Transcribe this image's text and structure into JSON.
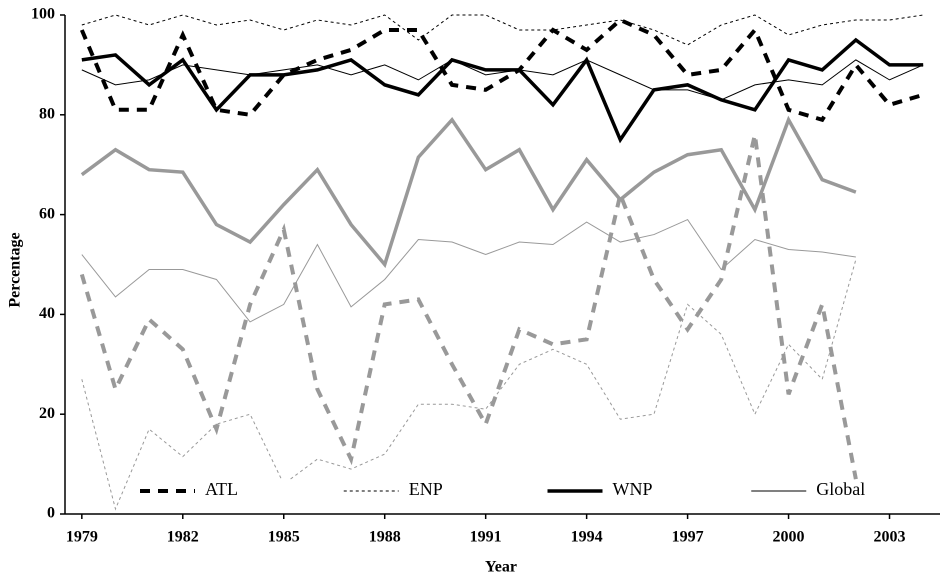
{
  "chart_data": {
    "type": "line",
    "x_label": "Year",
    "y_label": "Percentage",
    "x": [
      1979,
      1980,
      1981,
      1982,
      1983,
      1984,
      1985,
      1986,
      1987,
      1988,
      1989,
      1990,
      1991,
      1992,
      1993,
      1994,
      1995,
      1996,
      1997,
      1998,
      1999,
      2000,
      2001,
      2002,
      2003,
      2004
    ],
    "xlim": [
      1978.5,
      2004.5
    ],
    "xticks": [
      1979,
      1982,
      1985,
      1988,
      1991,
      1994,
      1997,
      2000,
      2003
    ],
    "ylim": [
      0,
      100
    ],
    "yticks": [
      0,
      20,
      40,
      60,
      80,
      100
    ],
    "legend": "bottom",
    "series": [
      {
        "name": "ATL",
        "color": "#000000",
        "line_style": "dashed",
        "line_width": 4,
        "values": [
          97,
          81,
          81,
          96,
          81,
          80,
          88,
          91,
          93,
          97,
          97,
          86,
          85,
          89,
          97,
          93,
          99,
          96,
          88,
          89,
          97,
          81,
          79,
          90,
          82,
          84
        ]
      },
      {
        "name": "ENP",
        "color": "#000000",
        "line_style": "dotted",
        "line_width": 1,
        "values": [
          98,
          100,
          98,
          100,
          98,
          99,
          97,
          99,
          98,
          100,
          95,
          100,
          100,
          97,
          97,
          98,
          99,
          97,
          94,
          98,
          100,
          96,
          98,
          99,
          99,
          100
        ]
      },
      {
        "name": "WNP",
        "color": "#000000",
        "line_style": "solid",
        "line_width": 3.5,
        "values": [
          91,
          92,
          86,
          91,
          81,
          88,
          88,
          89,
          91,
          86,
          84,
          91,
          89,
          89,
          82,
          91,
          75,
          85,
          86,
          83,
          81,
          91,
          89,
          95,
          90,
          90
        ]
      },
      {
        "name": "Global",
        "color": "#000000",
        "line_style": "solid",
        "line_width": 1,
        "values": [
          89,
          86,
          87,
          90,
          89,
          88,
          89,
          90,
          88,
          90,
          87,
          91,
          88,
          89,
          88,
          91,
          88,
          85,
          85,
          83,
          86,
          87,
          86,
          91,
          87,
          90
        ]
      },
      {
        "color": "#999999",
        "line_style": "dashed",
        "line_width": 4,
        "values": [
          48,
          25,
          39,
          33,
          17,
          42,
          57,
          25,
          11,
          42,
          43,
          30,
          18,
          37,
          34,
          35,
          64,
          47,
          37,
          47,
          76,
          24,
          42,
          7,
          null,
          null
        ]
      },
      {
        "color": "#999999",
        "line_style": "dotted",
        "line_width": 1,
        "values": [
          27,
          1,
          17,
          11.5,
          18,
          20,
          6,
          11,
          9,
          12,
          22,
          22,
          21,
          30,
          33,
          30,
          19,
          20,
          42,
          36,
          20,
          34,
          27,
          51,
          null,
          null
        ]
      },
      {
        "color": "#999999",
        "line_style": "solid",
        "line_width": 3.5,
        "values": [
          68,
          73,
          69,
          68.5,
          58,
          54.5,
          62,
          69,
          58,
          50,
          71.5,
          79,
          69,
          73,
          61,
          71,
          63,
          68.5,
          72,
          73,
          61,
          79,
          67,
          64.5,
          null,
          null
        ]
      },
      {
        "color": "#999999",
        "line_style": "solid",
        "line_width": 1,
        "values": [
          52,
          43.5,
          49,
          49,
          47,
          38.5,
          42,
          54,
          41.5,
          47,
          55,
          54.5,
          52,
          54.5,
          54,
          58.5,
          54.5,
          56,
          59,
          49,
          55,
          53,
          52.5,
          51.5,
          null,
          null
        ]
      }
    ]
  }
}
